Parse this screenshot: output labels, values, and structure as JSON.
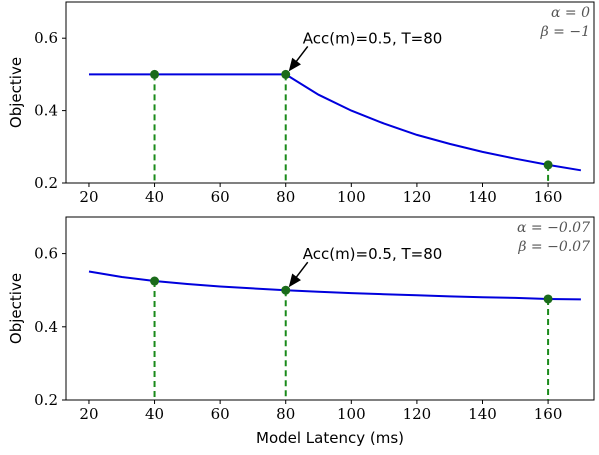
{
  "chart_data": [
    {
      "type": "line",
      "xlim": [
        13,
        174
      ],
      "ylim": [
        0.2,
        0.7
      ],
      "xticks": [
        20,
        40,
        60,
        80,
        100,
        120,
        140,
        160
      ],
      "yticks": [
        0.2,
        0.4,
        0.6
      ],
      "xtick_labels": [
        "20",
        "40",
        "60",
        "80",
        "100",
        "120",
        "140",
        "160"
      ],
      "ytick_labels": [
        "0.2",
        "0.4",
        "0.6"
      ],
      "ylabel": "Objective",
      "xlabel": "",
      "grid": false,
      "series": [
        {
          "color": "#0000dd",
          "x": [
            20,
            30,
            40,
            50,
            60,
            70,
            80,
            90,
            100,
            110,
            120,
            130,
            140,
            150,
            160,
            170
          ],
          "y": [
            0.5,
            0.5,
            0.5,
            0.5,
            0.5,
            0.5,
            0.5,
            0.444,
            0.4,
            0.364,
            0.333,
            0.308,
            0.286,
            0.267,
            0.25,
            0.235
          ]
        }
      ],
      "markers": {
        "color": "#1a6b1a",
        "x": [
          40,
          80,
          160
        ],
        "y": [
          0.5,
          0.5,
          0.25
        ]
      },
      "annotation": {
        "text": "Acc(m)=0.5, T=80",
        "point": [
          80,
          0.5
        ]
      },
      "params": [
        "α = 0",
        "β = −1"
      ]
    },
    {
      "type": "line",
      "xlim": [
        13,
        174
      ],
      "ylim": [
        0.2,
        0.7
      ],
      "xticks": [
        20,
        40,
        60,
        80,
        100,
        120,
        140,
        160
      ],
      "yticks": [
        0.2,
        0.4,
        0.6
      ],
      "xtick_labels": [
        "20",
        "40",
        "60",
        "80",
        "100",
        "120",
        "140",
        "160"
      ],
      "ytick_labels": [
        "0.2",
        "0.4",
        "0.6"
      ],
      "ylabel": "Objective",
      "xlabel": "Model Latency (ms)",
      "grid": false,
      "series": [
        {
          "color": "#0000dd",
          "x": [
            20,
            30,
            40,
            50,
            60,
            70,
            80,
            90,
            100,
            110,
            120,
            130,
            140,
            150,
            160,
            170
          ],
          "y": [
            0.551,
            0.536,
            0.525,
            0.517,
            0.51,
            0.505,
            0.5,
            0.496,
            0.492,
            0.489,
            0.486,
            0.483,
            0.481,
            0.479,
            0.476,
            0.475
          ]
        }
      ],
      "markers": {
        "color": "#1a6b1a",
        "x": [
          40,
          80,
          160
        ],
        "y": [
          0.525,
          0.5,
          0.476
        ]
      },
      "annotation": {
        "text": "Acc(m)=0.5, T=80",
        "point": [
          80,
          0.5
        ]
      },
      "params": [
        "α = −0.07",
        "β = −0.07"
      ]
    }
  ]
}
